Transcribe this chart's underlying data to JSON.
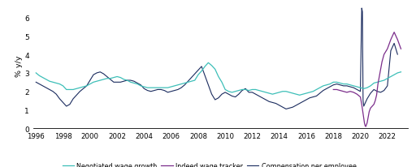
{
  "ylabel": "% y/y",
  "ylim": [
    0,
    6.8
  ],
  "yticks": [
    0,
    1,
    2,
    3,
    4,
    5,
    6
  ],
  "xlim_start": 1995.8,
  "xlim_end": 2023.5,
  "xticks": [
    1996,
    1998,
    2000,
    2002,
    2004,
    2006,
    2008,
    2010,
    2012,
    2014,
    2016,
    2018,
    2020,
    2022
  ],
  "legend": [
    "Negotiated wage growth",
    "Indeed wage tracker",
    "Compensation per employee"
  ],
  "colors": {
    "negotiated": "#3DBFB8",
    "indeed": "#7B2D8B",
    "compensation": "#1A2B5E"
  },
  "negotiated_wage": {
    "x": [
      1996.0,
      1996.25,
      1996.5,
      1996.75,
      1997.0,
      1997.25,
      1997.5,
      1997.75,
      1998.0,
      1998.25,
      1998.5,
      1998.75,
      1999.0,
      1999.25,
      1999.5,
      1999.75,
      2000.0,
      2000.25,
      2000.5,
      2000.75,
      2001.0,
      2001.25,
      2001.5,
      2001.75,
      2002.0,
      2002.25,
      2002.5,
      2002.75,
      2003.0,
      2003.25,
      2003.5,
      2003.75,
      2004.0,
      2004.25,
      2004.5,
      2004.75,
      2005.0,
      2005.25,
      2005.5,
      2005.75,
      2006.0,
      2006.25,
      2006.5,
      2006.75,
      2007.0,
      2007.25,
      2007.5,
      2007.75,
      2008.0,
      2008.25,
      2008.5,
      2008.75,
      2009.0,
      2009.25,
      2009.5,
      2009.75,
      2010.0,
      2010.25,
      2010.5,
      2010.75,
      2011.0,
      2011.25,
      2011.5,
      2011.75,
      2012.0,
      2012.25,
      2012.5,
      2012.75,
      2013.0,
      2013.25,
      2013.5,
      2013.75,
      2014.0,
      2014.25,
      2014.5,
      2014.75,
      2015.0,
      2015.25,
      2015.5,
      2015.75,
      2016.0,
      2016.25,
      2016.5,
      2016.75,
      2017.0,
      2017.25,
      2017.5,
      2017.75,
      2018.0,
      2018.25,
      2018.5,
      2018.75,
      2019.0,
      2019.25,
      2019.5,
      2019.75,
      2020.0,
      2020.25,
      2020.5,
      2020.75,
      2021.0,
      2021.25,
      2021.5,
      2021.75,
      2022.0,
      2022.25,
      2022.5,
      2022.75,
      2023.0
    ],
    "y": [
      3.0,
      2.85,
      2.75,
      2.65,
      2.55,
      2.5,
      2.45,
      2.4,
      2.3,
      2.1,
      2.1,
      2.1,
      2.15,
      2.2,
      2.25,
      2.3,
      2.4,
      2.5,
      2.55,
      2.6,
      2.65,
      2.7,
      2.7,
      2.75,
      2.8,
      2.75,
      2.65,
      2.6,
      2.5,
      2.45,
      2.4,
      2.3,
      2.25,
      2.2,
      2.2,
      2.2,
      2.2,
      2.2,
      2.2,
      2.2,
      2.25,
      2.3,
      2.35,
      2.4,
      2.45,
      2.5,
      2.55,
      2.6,
      2.9,
      3.1,
      3.35,
      3.55,
      3.4,
      3.2,
      2.8,
      2.5,
      2.1,
      2.0,
      1.95,
      2.0,
      2.05,
      2.1,
      2.1,
      2.05,
      2.1,
      2.1,
      2.05,
      2.0,
      1.95,
      1.9,
      1.85,
      1.9,
      1.95,
      2.0,
      2.0,
      1.95,
      1.9,
      1.85,
      1.8,
      1.85,
      1.9,
      1.95,
      2.0,
      2.1,
      2.2,
      2.3,
      2.35,
      2.4,
      2.5,
      2.5,
      2.45,
      2.4,
      2.4,
      2.35,
      2.3,
      2.25,
      2.2,
      2.15,
      2.2,
      2.3,
      2.45,
      2.5,
      2.55,
      2.6,
      2.7,
      2.8,
      2.9,
      3.0,
      3.05
    ]
  },
  "indeed_wage": {
    "x": [
      2018.0,
      2018.25,
      2018.5,
      2018.75,
      2019.0,
      2019.25,
      2019.5,
      2019.75,
      2020.0,
      2020.1,
      2020.2,
      2020.3,
      2020.35,
      2020.4,
      2020.45,
      2020.5,
      2020.55,
      2020.6,
      2020.65,
      2020.75,
      2021.0,
      2021.1,
      2021.2,
      2021.25,
      2021.3,
      2021.4,
      2021.5,
      2021.6,
      2021.75,
      2022.0,
      2022.25,
      2022.5,
      2022.75,
      2023.0
    ],
    "y": [
      2.1,
      2.1,
      2.05,
      2.0,
      1.95,
      2.0,
      1.95,
      1.85,
      1.7,
      1.3,
      0.8,
      0.3,
      0.15,
      0.1,
      0.2,
      0.3,
      0.5,
      0.7,
      0.9,
      1.1,
      1.3,
      1.5,
      1.8,
      2.1,
      2.4,
      2.8,
      3.2,
      3.6,
      4.0,
      4.3,
      4.8,
      5.2,
      4.8,
      4.3
    ]
  },
  "compensation": {
    "x": [
      1996.0,
      1996.25,
      1996.5,
      1996.75,
      1997.0,
      1997.25,
      1997.5,
      1997.75,
      1998.0,
      1998.25,
      1998.5,
      1998.75,
      1999.0,
      1999.25,
      1999.5,
      1999.75,
      2000.0,
      2000.25,
      2000.5,
      2000.75,
      2001.0,
      2001.25,
      2001.5,
      2001.75,
      2002.0,
      2002.25,
      2002.5,
      2002.75,
      2003.0,
      2003.25,
      2003.5,
      2003.75,
      2004.0,
      2004.25,
      2004.5,
      2004.75,
      2005.0,
      2005.25,
      2005.5,
      2005.75,
      2006.0,
      2006.25,
      2006.5,
      2006.75,
      2007.0,
      2007.25,
      2007.5,
      2007.75,
      2008.0,
      2008.25,
      2008.5,
      2008.75,
      2009.0,
      2009.25,
      2009.5,
      2009.75,
      2010.0,
      2010.25,
      2010.5,
      2010.75,
      2011.0,
      2011.25,
      2011.5,
      2011.75,
      2012.0,
      2012.25,
      2012.5,
      2012.75,
      2013.0,
      2013.25,
      2013.5,
      2013.75,
      2014.0,
      2014.25,
      2014.5,
      2014.75,
      2015.0,
      2015.25,
      2015.5,
      2015.75,
      2016.0,
      2016.25,
      2016.5,
      2016.75,
      2017.0,
      2017.25,
      2017.5,
      2017.75,
      2018.0,
      2018.25,
      2018.5,
      2018.75,
      2019.0,
      2019.25,
      2019.5,
      2019.75,
      2020.0,
      2020.1,
      2020.15,
      2020.2,
      2020.25,
      2020.5,
      2020.75,
      2021.0,
      2021.25,
      2021.5,
      2021.75,
      2022.0,
      2022.25,
      2022.5,
      2022.75
    ],
    "y": [
      2.5,
      2.4,
      2.3,
      2.2,
      2.1,
      2.0,
      1.85,
      1.6,
      1.4,
      1.2,
      1.3,
      1.6,
      1.8,
      2.0,
      2.15,
      2.3,
      2.6,
      2.9,
      3.0,
      3.05,
      2.95,
      2.8,
      2.65,
      2.5,
      2.5,
      2.5,
      2.55,
      2.6,
      2.6,
      2.55,
      2.45,
      2.35,
      2.15,
      2.05,
      2.0,
      2.05,
      2.1,
      2.1,
      2.05,
      1.95,
      2.0,
      2.05,
      2.1,
      2.2,
      2.35,
      2.55,
      2.75,
      2.95,
      3.15,
      3.35,
      2.85,
      2.35,
      1.85,
      1.55,
      1.65,
      1.85,
      1.95,
      1.85,
      1.75,
      1.7,
      1.85,
      2.05,
      2.15,
      1.95,
      1.95,
      1.85,
      1.75,
      1.65,
      1.55,
      1.45,
      1.4,
      1.35,
      1.25,
      1.15,
      1.05,
      1.1,
      1.15,
      1.25,
      1.35,
      1.45,
      1.55,
      1.65,
      1.7,
      1.75,
      1.9,
      2.05,
      2.15,
      2.25,
      2.35,
      2.4,
      2.35,
      2.3,
      2.3,
      2.25,
      2.2,
      2.1,
      2.0,
      6.5,
      6.3,
      1.5,
      1.2,
      1.6,
      1.9,
      2.1,
      2.0,
      1.95,
      2.05,
      2.3,
      4.2,
      4.6,
      4.0
    ]
  }
}
